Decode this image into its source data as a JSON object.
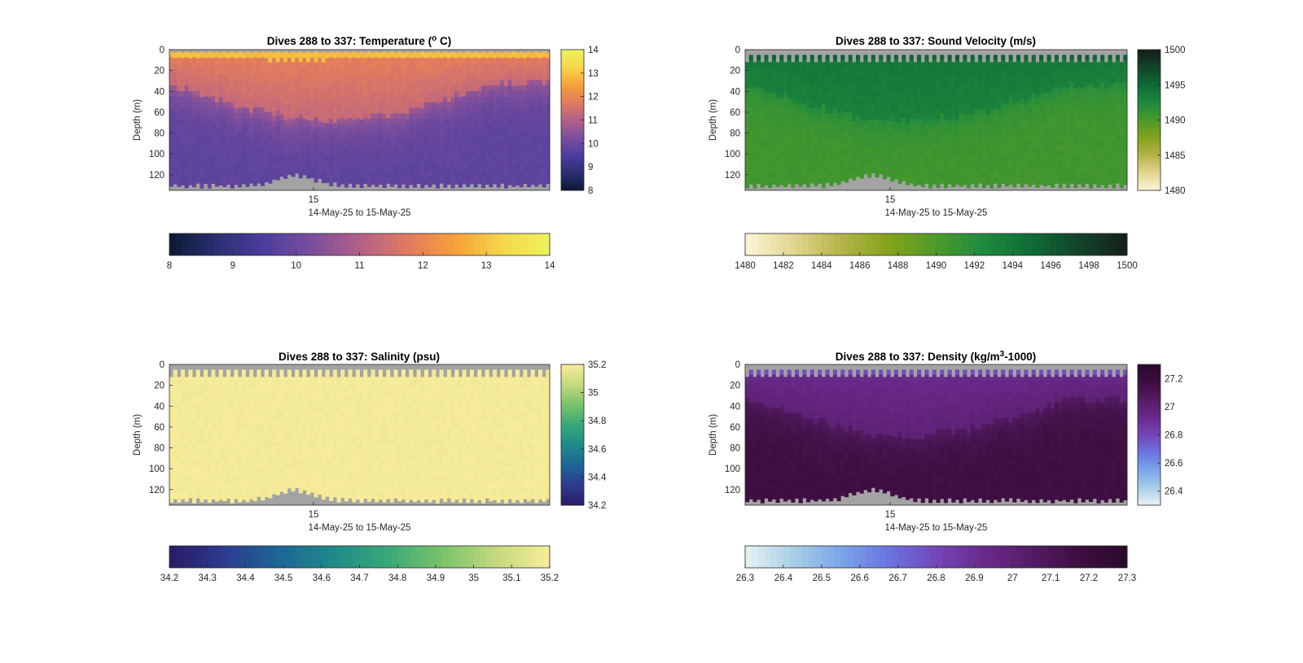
{
  "chart_data": [
    {
      "type": "heatmap",
      "title": "Dives 288 to 337: Temperature (",
      "title_sup": "o",
      "title_end": " C)",
      "ylabel": "Depth (m)",
      "xlabel": "14-May-25 to 15-May-25",
      "x_tick_labels": [
        "15"
      ],
      "y_tick_labels": [
        "0",
        "20",
        "40",
        "60",
        "80",
        "100",
        "120"
      ],
      "ylim": [
        0,
        135
      ],
      "ydir": "reverse",
      "colormap": [
        "#0b1a33",
        "#2b2f73",
        "#4b3d9e",
        "#7b4e9d",
        "#b2608a",
        "#e07a60",
        "#f7a03a",
        "#f5d64a",
        "#eef35e"
      ],
      "clim": [
        8,
        14
      ],
      "vertical_colorbar_ticks": [
        "8",
        "9",
        "10",
        "11",
        "12",
        "13",
        "14"
      ],
      "horizontal_colorbar_ticks": [
        "8",
        "9",
        "10",
        "11",
        "12",
        "13",
        "14"
      ],
      "profile": {
        "surface": 12.9,
        "mixed": 11.3,
        "deep": 9.8
      }
    },
    {
      "type": "heatmap",
      "title": "Dives 288 to 337: Sound Velocity (m/s)",
      "ylabel": "Depth (m)",
      "xlabel": "14-May-25 to 15-May-25",
      "x_tick_labels": [
        "15"
      ],
      "y_tick_labels": [
        "0",
        "20",
        "40",
        "60",
        "80",
        "100",
        "120"
      ],
      "ylim": [
        0,
        135
      ],
      "ydir": "reverse",
      "colormap": [
        "#fcf6d8",
        "#e2d691",
        "#b5b44a",
        "#85a31b",
        "#4c9a2a",
        "#1e8a3e",
        "#0f6b36",
        "#12442a",
        "#161f18"
      ],
      "clim": [
        1480,
        1500
      ],
      "vertical_colorbar_ticks": [
        "1480",
        "1485",
        "1490",
        "1495",
        "1500"
      ],
      "horizontal_colorbar_ticks": [
        "1480",
        "1482",
        "1484",
        "1486",
        "1488",
        "1490",
        "1492",
        "1494",
        "1496",
        "1498",
        "1500"
      ],
      "profile": {
        "surface": 1495.5,
        "mixed": 1493.2,
        "deep": 1490.6
      }
    },
    {
      "type": "heatmap",
      "title": "Dives 288 to 337: Salinity (psu)",
      "ylabel": "Depth (m)",
      "xlabel": "14-May-25 to 15-May-25",
      "x_tick_labels": [
        "15"
      ],
      "y_tick_labels": [
        "0",
        "20",
        "40",
        "60",
        "80",
        "100",
        "120"
      ],
      "ylim": [
        0,
        135
      ],
      "ydir": "reverse",
      "colormap": [
        "#2a1a66",
        "#2c3b8f",
        "#1d6596",
        "#1f8a8a",
        "#36a878",
        "#78c26a",
        "#c3d97c",
        "#f8ec9a"
      ],
      "clim": [
        34.2,
        35.2
      ],
      "vertical_colorbar_ticks": [
        "34.2",
        "34.4",
        "34.6",
        "34.8",
        "35",
        "35.2"
      ],
      "horizontal_colorbar_ticks": [
        "34.2",
        "34.3",
        "34.4",
        "34.5",
        "34.6",
        "34.7",
        "34.8",
        "34.9",
        "35",
        "35.1",
        "35.2"
      ],
      "profile": {
        "surface": 35.19,
        "mixed": 35.19,
        "deep": 35.19
      }
    },
    {
      "type": "heatmap",
      "title": "Dives 288 to 337: Density (kg/m",
      "title_sup": "3",
      "title_end": "-1000)",
      "ylabel": "Depth (m)",
      "xlabel": "14-May-25 to 15-May-25",
      "x_tick_labels": [
        "15"
      ],
      "y_tick_labels": [
        "0",
        "20",
        "40",
        "60",
        "80",
        "100",
        "120"
      ],
      "ylim": [
        0,
        135
      ],
      "ydir": "reverse",
      "colormap": [
        "#e8f2f3",
        "#a9cfe7",
        "#7aa6ea",
        "#6a74e0",
        "#7346b8",
        "#6a2a8c",
        "#551c66",
        "#3d0e3f",
        "#2a0a2b"
      ],
      "clim": [
        26.3,
        27.3
      ],
      "vertical_colorbar_ticks": [
        "26.4",
        "26.6",
        "26.8",
        "27",
        "27.2"
      ],
      "horizontal_colorbar_ticks": [
        "26.3",
        "26.4",
        "26.5",
        "26.6",
        "26.7",
        "26.8",
        "26.9",
        "27",
        "27.1",
        "27.2",
        "27.3"
      ],
      "profile": {
        "surface": 26.78,
        "mixed": 27.0,
        "deep": 27.17
      }
    }
  ]
}
